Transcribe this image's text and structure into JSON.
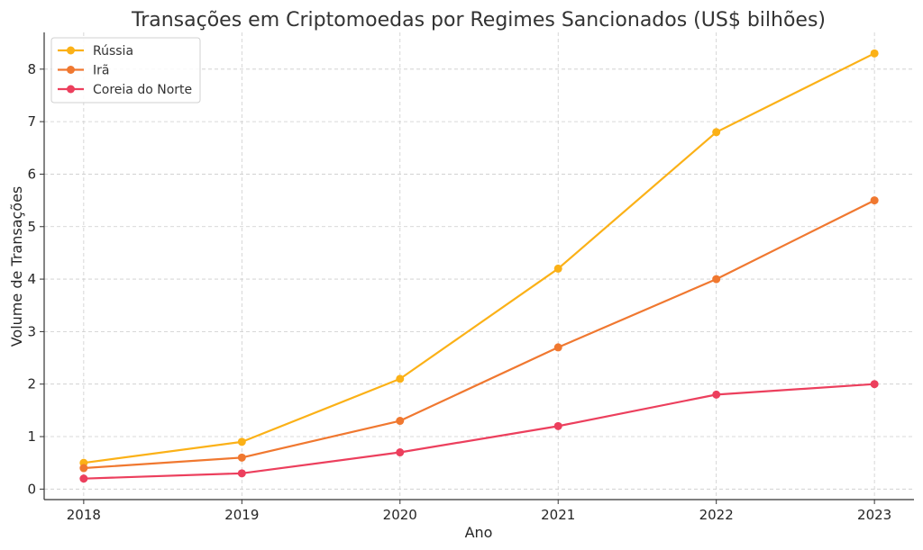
{
  "chart_data": {
    "type": "line",
    "title": "Transações em Criptomoedas por Regimes Sancionados (US$ bilhões)",
    "xlabel": "Ano",
    "ylabel": "Volume de Transações",
    "x": [
      2018,
      2019,
      2020,
      2021,
      2022,
      2023
    ],
    "xticks": [
      "2018",
      "2019",
      "2020",
      "2021",
      "2022",
      "2023"
    ],
    "yticks": [
      "0",
      "1",
      "2",
      "3",
      "4",
      "5",
      "6",
      "7",
      "8"
    ],
    "ylim": [
      -0.2,
      8.7
    ],
    "xlim": [
      2017.75,
      2023.25
    ],
    "grid": true,
    "legend_position": "top-left",
    "series": [
      {
        "name": "Rússia",
        "color": "#fbb117",
        "values": [
          0.5,
          0.9,
          2.1,
          4.2,
          6.8,
          8.3
        ]
      },
      {
        "name": "Irã",
        "color": "#f07830",
        "values": [
          0.4,
          0.6,
          1.3,
          2.7,
          4.0,
          5.5
        ]
      },
      {
        "name": "Coreia do Norte",
        "color": "#ec3f5d",
        "values": [
          0.2,
          0.3,
          0.7,
          1.2,
          1.8,
          2.0
        ]
      }
    ]
  }
}
